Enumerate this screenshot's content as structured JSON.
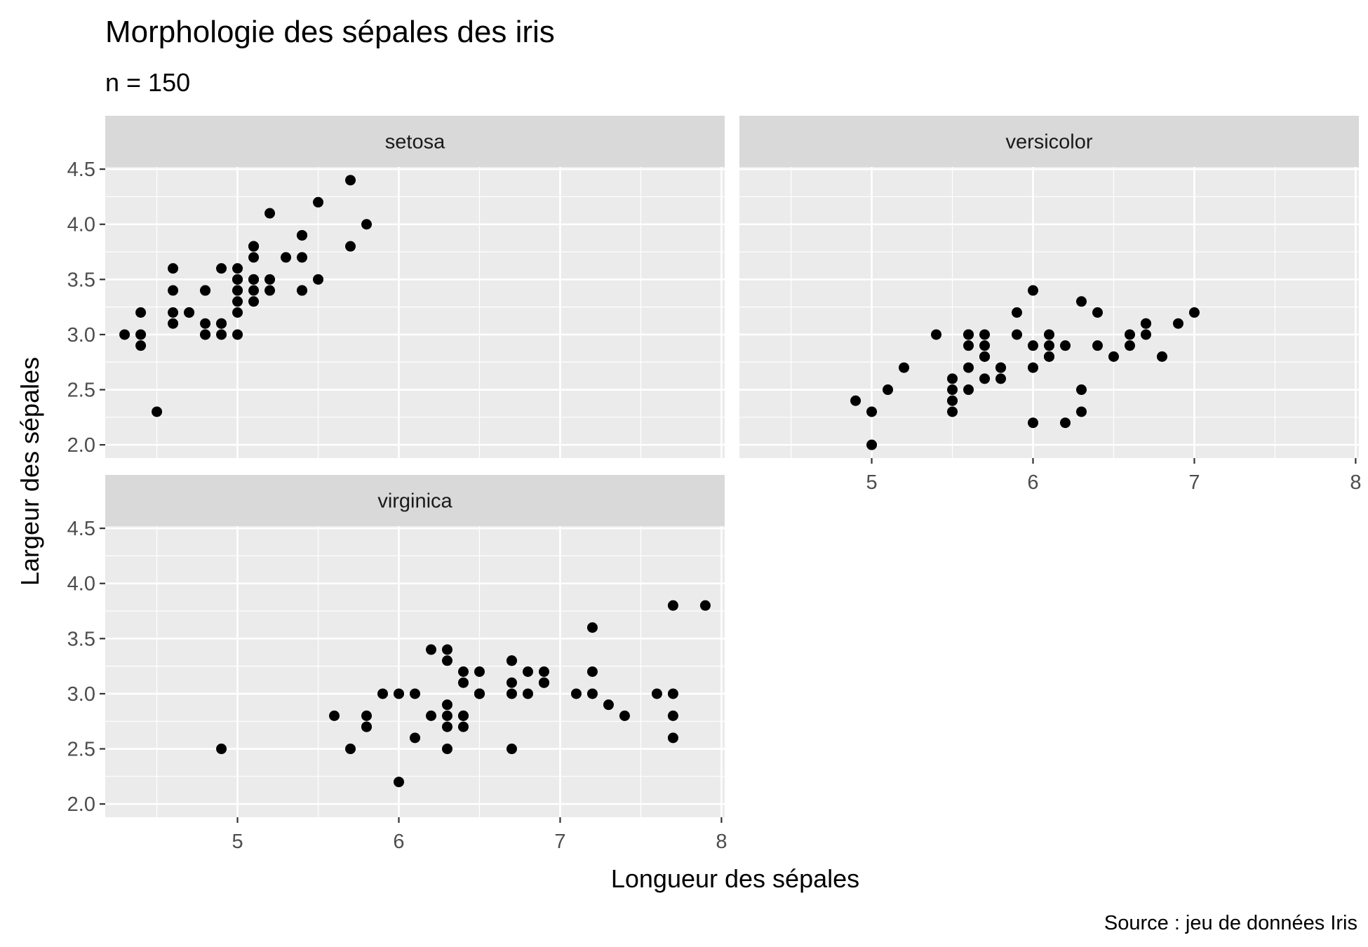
{
  "chart_data": {
    "type": "scatter",
    "title": "Morphologie des sépales des iris",
    "subtitle": "n = 150",
    "xlabel": "Longueur des sépales",
    "ylabel": "Largeur des sépales",
    "caption": "Source : jeu de données Iris",
    "xlim": [
      4.18,
      8.02
    ],
    "ylim": [
      1.88,
      4.52
    ],
    "x_ticks": [
      5,
      6,
      7,
      8
    ],
    "x_tick_labels": [
      "5",
      "6",
      "7",
      "8"
    ],
    "y_ticks": [
      2.0,
      2.5,
      3.0,
      3.5,
      4.0,
      4.5
    ],
    "y_tick_labels": [
      "2.0",
      "2.5",
      "3.0",
      "3.5",
      "4.0",
      "4.5"
    ],
    "grid": true,
    "point_color": "#000000",
    "panel_background": "#ebebeb",
    "strip_background": "#d9d9d9",
    "panels": [
      {
        "name": "setosa",
        "points": [
          [
            5.1,
            3.5
          ],
          [
            4.9,
            3.0
          ],
          [
            4.7,
            3.2
          ],
          [
            4.6,
            3.1
          ],
          [
            5.0,
            3.6
          ],
          [
            5.4,
            3.9
          ],
          [
            4.6,
            3.4
          ],
          [
            5.0,
            3.4
          ],
          [
            4.4,
            2.9
          ],
          [
            4.9,
            3.1
          ],
          [
            5.4,
            3.7
          ],
          [
            4.8,
            3.4
          ],
          [
            4.8,
            3.0
          ],
          [
            4.3,
            3.0
          ],
          [
            5.8,
            4.0
          ],
          [
            5.7,
            4.4
          ],
          [
            5.4,
            3.9
          ],
          [
            5.1,
            3.5
          ],
          [
            5.7,
            3.8
          ],
          [
            5.1,
            3.8
          ],
          [
            5.4,
            3.4
          ],
          [
            5.1,
            3.7
          ],
          [
            4.6,
            3.6
          ],
          [
            5.1,
            3.3
          ],
          [
            4.8,
            3.4
          ],
          [
            5.0,
            3.0
          ],
          [
            5.0,
            3.4
          ],
          [
            5.2,
            3.5
          ],
          [
            5.2,
            3.4
          ],
          [
            4.7,
            3.2
          ],
          [
            4.8,
            3.1
          ],
          [
            5.4,
            3.4
          ],
          [
            5.2,
            4.1
          ],
          [
            5.5,
            4.2
          ],
          [
            4.9,
            3.1
          ],
          [
            5.0,
            3.2
          ],
          [
            5.5,
            3.5
          ],
          [
            4.9,
            3.6
          ],
          [
            4.4,
            3.0
          ],
          [
            5.1,
            3.4
          ],
          [
            5.0,
            3.5
          ],
          [
            4.5,
            2.3
          ],
          [
            4.4,
            3.2
          ],
          [
            5.0,
            3.5
          ],
          [
            5.1,
            3.8
          ],
          [
            4.8,
            3.0
          ],
          [
            5.1,
            3.8
          ],
          [
            4.6,
            3.2
          ],
          [
            5.3,
            3.7
          ],
          [
            5.0,
            3.3
          ]
        ]
      },
      {
        "name": "versicolor",
        "points": [
          [
            7.0,
            3.2
          ],
          [
            6.4,
            3.2
          ],
          [
            6.9,
            3.1
          ],
          [
            5.5,
            2.3
          ],
          [
            6.5,
            2.8
          ],
          [
            5.7,
            2.8
          ],
          [
            6.3,
            3.3
          ],
          [
            4.9,
            2.4
          ],
          [
            6.6,
            2.9
          ],
          [
            5.2,
            2.7
          ],
          [
            5.0,
            2.0
          ],
          [
            5.9,
            3.0
          ],
          [
            6.0,
            2.2
          ],
          [
            6.1,
            2.9
          ],
          [
            5.6,
            2.9
          ],
          [
            6.7,
            3.1
          ],
          [
            5.6,
            3.0
          ],
          [
            5.8,
            2.7
          ],
          [
            6.2,
            2.2
          ],
          [
            5.6,
            2.5
          ],
          [
            5.9,
            3.2
          ],
          [
            6.1,
            2.8
          ],
          [
            6.3,
            2.5
          ],
          [
            6.1,
            2.8
          ],
          [
            6.4,
            2.9
          ],
          [
            6.6,
            3.0
          ],
          [
            6.8,
            2.8
          ],
          [
            6.7,
            3.0
          ],
          [
            6.0,
            2.9
          ],
          [
            5.7,
            2.6
          ],
          [
            5.5,
            2.4
          ],
          [
            5.5,
            2.4
          ],
          [
            5.8,
            2.7
          ],
          [
            6.0,
            2.7
          ],
          [
            5.4,
            3.0
          ],
          [
            6.0,
            3.4
          ],
          [
            6.7,
            3.1
          ],
          [
            6.3,
            2.3
          ],
          [
            5.6,
            3.0
          ],
          [
            5.5,
            2.5
          ],
          [
            5.5,
            2.6
          ],
          [
            6.1,
            3.0
          ],
          [
            5.8,
            2.6
          ],
          [
            5.0,
            2.3
          ],
          [
            5.6,
            2.7
          ],
          [
            5.7,
            3.0
          ],
          [
            5.7,
            2.9
          ],
          [
            6.2,
            2.9
          ],
          [
            5.1,
            2.5
          ],
          [
            5.7,
            2.8
          ]
        ]
      },
      {
        "name": "virginica",
        "points": [
          [
            6.3,
            3.3
          ],
          [
            5.8,
            2.7
          ],
          [
            7.1,
            3.0
          ],
          [
            6.3,
            2.9
          ],
          [
            6.5,
            3.0
          ],
          [
            7.6,
            3.0
          ],
          [
            4.9,
            2.5
          ],
          [
            7.3,
            2.9
          ],
          [
            6.7,
            2.5
          ],
          [
            7.2,
            3.6
          ],
          [
            6.5,
            3.2
          ],
          [
            6.4,
            2.7
          ],
          [
            6.8,
            3.0
          ],
          [
            5.7,
            2.5
          ],
          [
            5.8,
            2.8
          ],
          [
            6.4,
            3.2
          ],
          [
            6.5,
            3.0
          ],
          [
            7.7,
            3.8
          ],
          [
            7.7,
            2.6
          ],
          [
            6.0,
            2.2
          ],
          [
            6.9,
            3.2
          ],
          [
            5.6,
            2.8
          ],
          [
            7.7,
            2.8
          ],
          [
            6.3,
            2.7
          ],
          [
            6.7,
            3.3
          ],
          [
            7.2,
            3.2
          ],
          [
            6.2,
            2.8
          ],
          [
            6.1,
            3.0
          ],
          [
            6.4,
            2.8
          ],
          [
            7.2,
            3.0
          ],
          [
            7.4,
            2.8
          ],
          [
            7.9,
            3.8
          ],
          [
            6.4,
            2.8
          ],
          [
            6.3,
            2.8
          ],
          [
            6.1,
            2.6
          ],
          [
            7.7,
            3.0
          ],
          [
            6.3,
            3.4
          ],
          [
            6.4,
            3.1
          ],
          [
            6.0,
            3.0
          ],
          [
            6.9,
            3.1
          ],
          [
            6.7,
            3.1
          ],
          [
            6.9,
            3.1
          ],
          [
            5.8,
            2.7
          ],
          [
            6.8,
            3.2
          ],
          [
            6.7,
            3.3
          ],
          [
            6.7,
            3.0
          ],
          [
            6.3,
            2.5
          ],
          [
            6.5,
            3.0
          ],
          [
            6.2,
            3.4
          ],
          [
            5.9,
            3.0
          ]
        ]
      }
    ]
  }
}
